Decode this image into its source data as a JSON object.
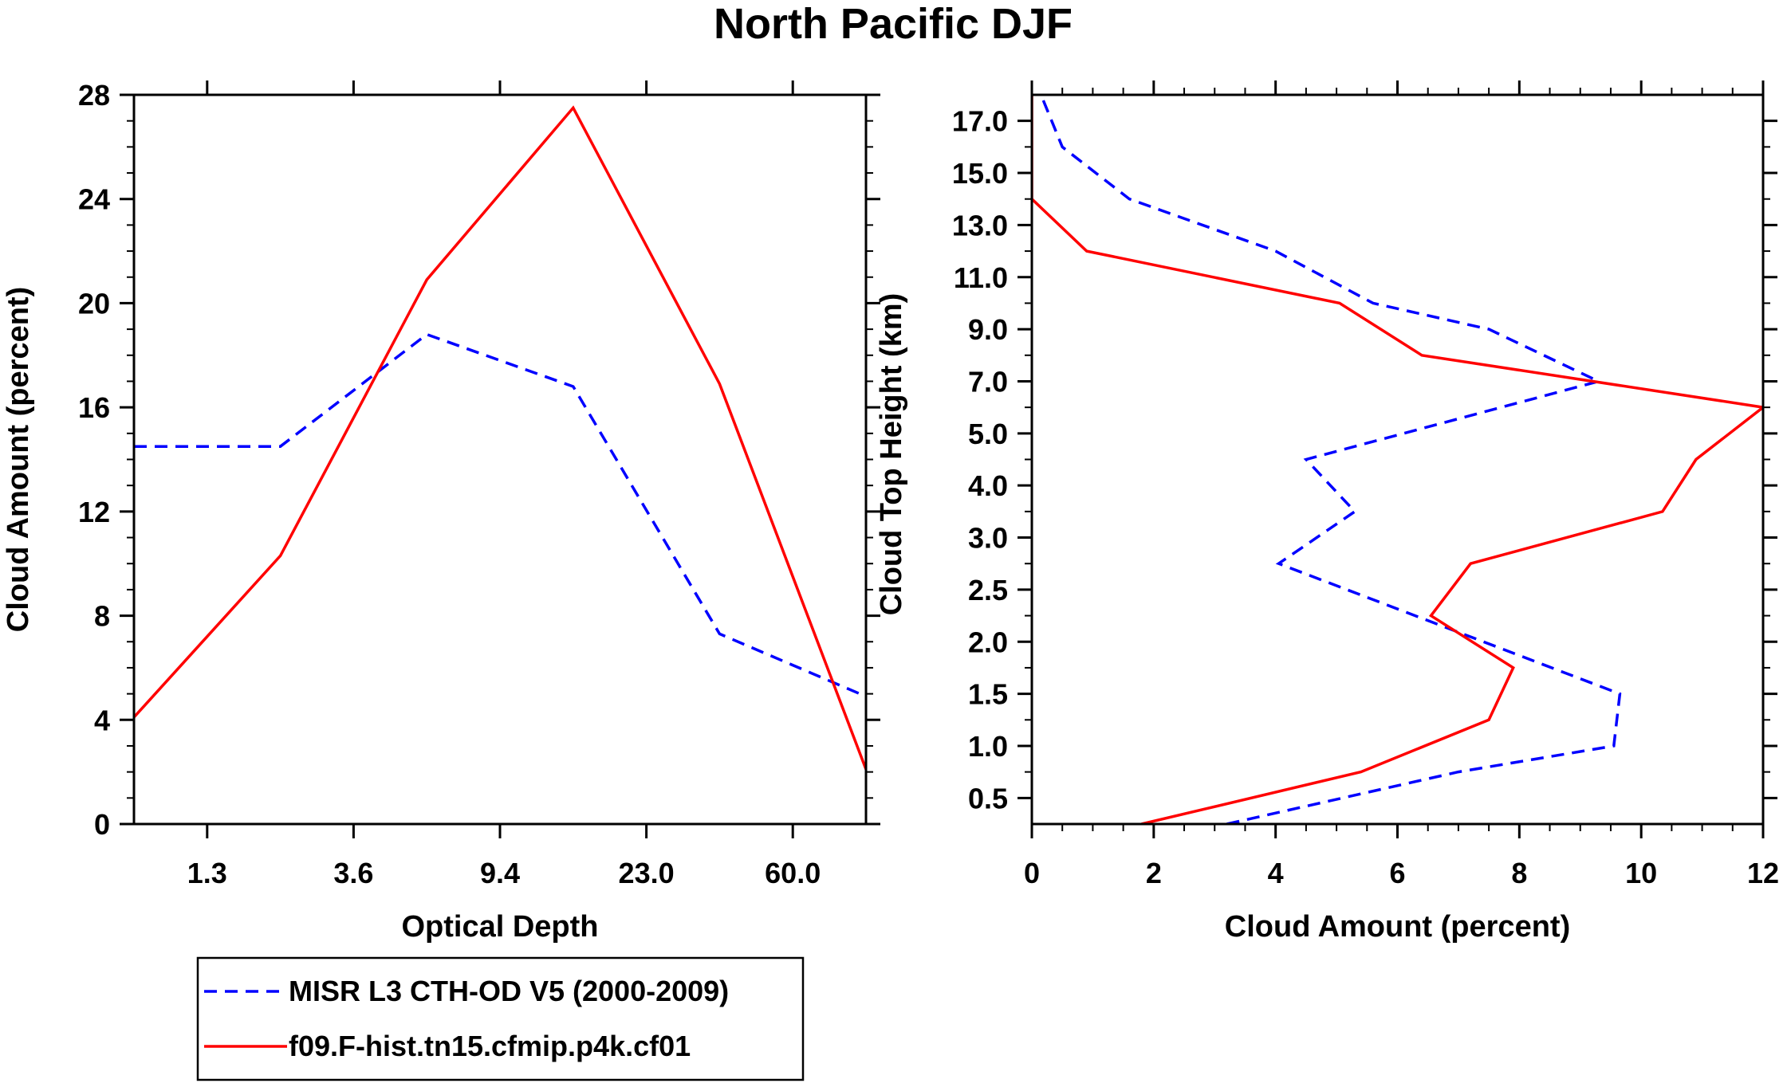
{
  "title": "North Pacific DJF",
  "chart_data": [
    {
      "type": "line",
      "xlabel": "Optical Depth",
      "ylabel": "Cloud Amount (percent)",
      "x_positions": [
        0,
        1,
        2,
        3,
        4,
        5
      ],
      "x_tick_labels": [
        "1.3",
        "3.6",
        "9.4",
        "23.0",
        "60.0"
      ],
      "x_tick_positions": [
        0.5,
        1.5,
        2.5,
        3.5,
        4.5
      ],
      "xlim": [
        0,
        5
      ],
      "y_ticks": [
        0,
        4,
        8,
        12,
        16,
        20,
        24,
        28
      ],
      "ylim": [
        0,
        28
      ],
      "series": [
        {
          "name": "MISR L3 CTH-OD V5 (2000-2009)",
          "color": "#0000ff",
          "dashed": true,
          "x": [
            0,
            1,
            2,
            3,
            4,
            5
          ],
          "values": [
            14.5,
            14.5,
            18.8,
            16.8,
            7.3,
            4.9
          ]
        },
        {
          "name": "f09.F-hist.tn15.cfmip.p4k.cf01",
          "color": "#ff0000",
          "dashed": false,
          "x": [
            0,
            1,
            2,
            3,
            4,
            5
          ],
          "values": [
            4.1,
            10.3,
            20.9,
            27.5,
            16.9,
            2.1
          ]
        }
      ]
    },
    {
      "type": "line",
      "xlabel": "Cloud Amount (percent)",
      "ylabel": "Cloud Top Height (km)",
      "x_ticks": [
        0,
        2,
        4,
        6,
        8,
        10,
        12
      ],
      "xlim": [
        0,
        12
      ],
      "y_tick_labels": [
        "0.5",
        "1.0",
        "1.5",
        "2.0",
        "2.5",
        "3.0",
        "4.0",
        "5.0",
        "7.0",
        "9.0",
        "11.0",
        "13.0",
        "15.0",
        "17.0"
      ],
      "y_tick_positions": [
        0.5,
        1.5,
        2.5,
        3.5,
        4.5,
        5.5,
        6.5,
        7.5,
        8.5,
        9.5,
        10.5,
        11.5,
        12.5,
        13.5
      ],
      "ylim": [
        0,
        14
      ],
      "series": [
        {
          "name": "MISR L3 CTH-OD V5 (2000-2009)",
          "color": "#0000ff",
          "dashed": true,
          "x": [
            3.2,
            7.0,
            9.55,
            9.65,
            4.05,
            5.3,
            4.5,
            9.3,
            7.5,
            5.6,
            4.0,
            1.6,
            0.5,
            0.15
          ],
          "y": [
            0,
            1,
            1.5,
            2.5,
            5,
            6,
            7,
            8.5,
            9.5,
            10,
            11,
            12,
            13,
            14
          ]
        },
        {
          "name": "f09.F-hist.tn15.cfmip.p4k.cf01",
          "color": "#ff0000",
          "dashed": false,
          "x": [
            1.8,
            5.4,
            7.5,
            7.9,
            6.55,
            7.2,
            10.35,
            10.9,
            12.0,
            6.4,
            5.05,
            0.9,
            0.0,
            0.0
          ],
          "y": [
            0,
            1,
            2,
            3,
            4,
            5,
            6,
            7,
            8,
            9,
            10,
            11,
            12,
            14
          ]
        }
      ]
    }
  ],
  "legend": {
    "items": [
      {
        "label": "MISR L3 CTH-OD V5 (2000-2009)",
        "color": "#0000ff",
        "dashed": true
      },
      {
        "label": "f09.F-hist.tn15.cfmip.p4k.cf01",
        "color": "#ff0000",
        "dashed": false
      }
    ]
  }
}
